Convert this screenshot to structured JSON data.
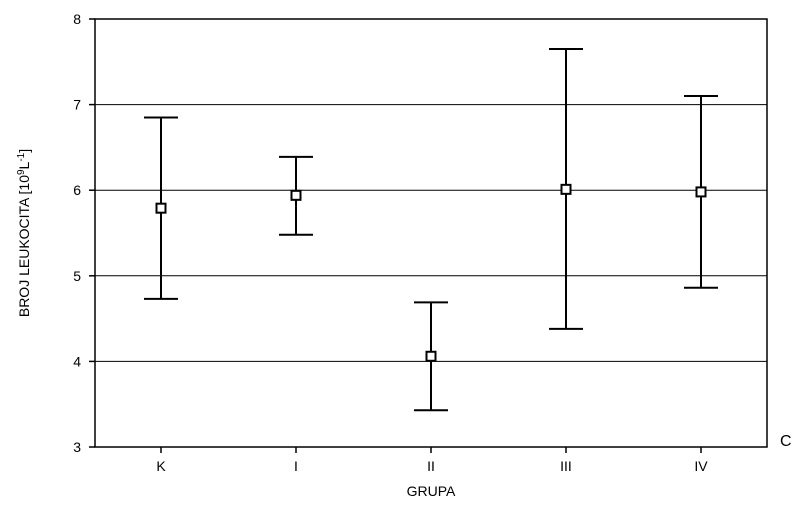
{
  "chart_data": {
    "type": "scatter",
    "title": "",
    "xlabel": "GRUPA",
    "ylabel": {
      "base": "BROJ LEUKOCITA [10",
      "sup1": "9",
      "mid": "L",
      "sup2": "-1",
      "end": "]"
    },
    "ylim": [
      3,
      8
    ],
    "yticks": [
      "3",
      "4",
      "5",
      "6",
      "7",
      "8"
    ],
    "grid": "horizontal",
    "categories": [
      "K",
      "I",
      "II",
      "III",
      "IV"
    ],
    "series": [
      {
        "values": [
          5.79,
          5.94,
          4.06,
          6.01,
          5.98
        ],
        "lower": [
          4.73,
          5.48,
          3.43,
          4.38,
          4.86
        ],
        "upper": [
          6.85,
          6.39,
          4.69,
          7.65,
          7.1
        ]
      }
    ],
    "panel_label": "C"
  }
}
